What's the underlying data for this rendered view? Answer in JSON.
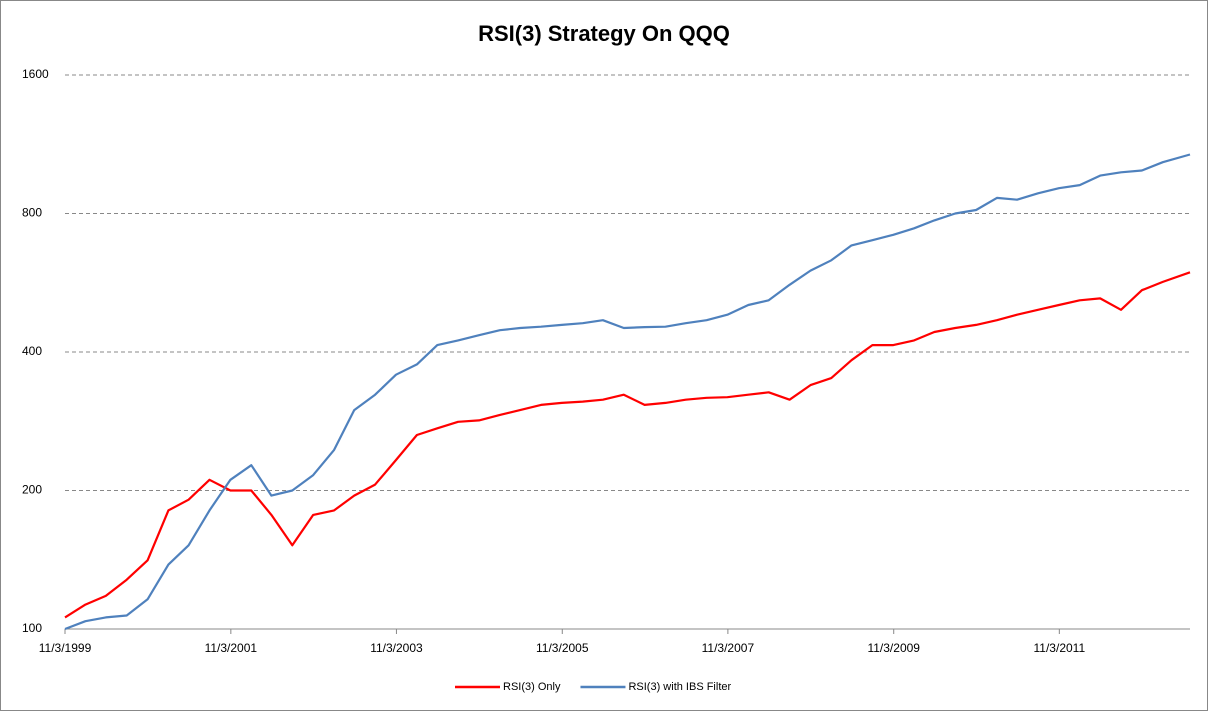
{
  "chart_data": {
    "type": "line",
    "title": "RSI(3) Strategy On QQQ",
    "x": [
      "1999-11-03",
      "2000-02-01",
      "2000-05-01",
      "2000-08-01",
      "2000-11-01",
      "2001-02-01",
      "2001-05-01",
      "2001-08-01",
      "2001-11-01",
      "2002-02-01",
      "2002-05-01",
      "2002-08-01",
      "2002-11-01",
      "2003-02-01",
      "2003-05-01",
      "2003-08-01",
      "2003-11-01",
      "2004-02-01",
      "2004-05-01",
      "2004-08-01",
      "2004-11-01",
      "2005-02-01",
      "2005-05-01",
      "2005-08-01",
      "2005-11-01",
      "2006-02-01",
      "2006-05-01",
      "2006-08-01",
      "2006-11-01",
      "2007-02-01",
      "2007-05-01",
      "2007-08-01",
      "2007-11-01",
      "2008-02-01",
      "2008-05-01",
      "2008-08-01",
      "2008-11-01",
      "2009-02-01",
      "2009-05-01",
      "2009-08-01",
      "2009-11-01",
      "2010-02-01",
      "2010-05-01",
      "2010-08-01",
      "2010-11-01",
      "2011-02-01",
      "2011-05-01",
      "2011-08-01",
      "2011-11-01",
      "2012-02-01",
      "2012-05-01",
      "2012-08-01",
      "2012-11-01",
      "2013-02-01",
      "2013-06-01"
    ],
    "series": [
      {
        "name": "RSI(3) Only",
        "color": "#ff0000",
        "values": [
          106,
          113,
          118,
          128,
          141,
          181,
          191,
          211,
          200,
          200,
          177,
          152,
          177,
          181,
          195,
          206,
          233,
          264,
          273,
          282,
          284,
          292,
          299,
          307,
          310,
          312,
          315,
          323,
          307,
          310,
          315,
          318,
          319,
          323,
          327,
          315,
          339,
          351,
          384,
          414,
          414,
          424,
          442,
          451,
          458,
          469,
          482,
          494,
          506,
          518,
          523,
          494,
          545,
          568,
          596
        ]
      },
      {
        "name": "RSI(3) with IBS Filter",
        "color": "#4f81bd",
        "values": [
          100,
          104,
          106,
          107,
          116,
          138,
          152,
          181,
          211,
          227,
          195,
          200,
          216,
          245,
          299,
          323,
          357,
          376,
          414,
          424,
          435,
          446,
          451,
          454,
          458,
          462,
          469,
          451,
          453,
          454,
          462,
          469,
          482,
          506,
          518,
          560,
          601,
          633,
          682,
          700,
          719,
          743,
          773,
          800,
          814,
          865,
          857,
          885,
          908,
          922,
          967,
          983,
          992,
          1034,
          1075
        ]
      }
    ],
    "xlim": [
      "1999-11-03",
      "2013-06-01"
    ],
    "xticks": [
      {
        "value": "1999-11-03",
        "label": "11/3/1999"
      },
      {
        "value": "2001-11-03",
        "label": "11/3/2001"
      },
      {
        "value": "2003-11-03",
        "label": "11/3/2003"
      },
      {
        "value": "2005-11-03",
        "label": "11/3/2005"
      },
      {
        "value": "2007-11-03",
        "label": "11/3/2007"
      },
      {
        "value": "2009-11-03",
        "label": "11/3/2009"
      },
      {
        "value": "2011-11-03",
        "label": "11/3/2011"
      }
    ],
    "ylim": [
      100,
      1600
    ],
    "yticks": [
      100,
      200,
      400,
      800,
      1600
    ],
    "yscale": "log",
    "grid": true,
    "legend": "bottom"
  }
}
